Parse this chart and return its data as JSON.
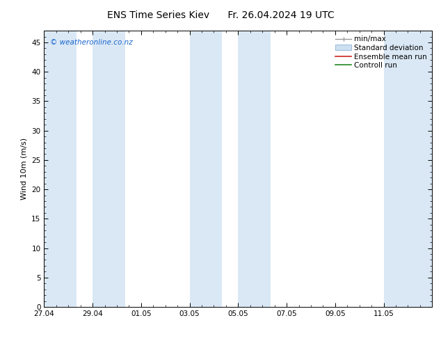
{
  "title_left": "ENS Time Series Kiev",
  "title_right": "Fr. 26.04.2024 19 UTC",
  "ylabel": "Wind 10m (m/s)",
  "ylim": [
    0,
    47
  ],
  "yticks": [
    0,
    5,
    10,
    15,
    20,
    25,
    30,
    35,
    40,
    45
  ],
  "x_min": 0.0,
  "x_max": 16.0,
  "xtick_positions": [
    0,
    2,
    4,
    6,
    8,
    10,
    12,
    14
  ],
  "xtick_labels": [
    "27.04",
    "29.04",
    "01.05",
    "03.05",
    "05.05",
    "07.05",
    "09.05",
    "11.05"
  ],
  "background_color": "#ffffff",
  "plot_bg_color": "#ffffff",
  "shaded_band_color": "#dae8f5",
  "shaded_bands": [
    [
      0.0,
      1.33
    ],
    [
      2.0,
      3.33
    ],
    [
      6.0,
      7.33
    ],
    [
      8.0,
      9.33
    ],
    [
      14.0,
      16.0
    ]
  ],
  "watermark_text": "© weatheronline.co.nz",
  "watermark_color": "#1a66cc",
  "watermark_fontsize": 7.5,
  "title_fontsize": 10,
  "label_fontsize": 8,
  "tick_fontsize": 7.5,
  "legend_fontsize": 7.5,
  "tick_color": "#000000",
  "axis_color": "#000000",
  "legend_minmax_color": "#999999",
  "legend_std_facecolor": "#cce0f0",
  "legend_std_edgecolor": "#99bbdd",
  "legend_ens_color": "#cc2222",
  "legend_ctrl_color": "#228822"
}
